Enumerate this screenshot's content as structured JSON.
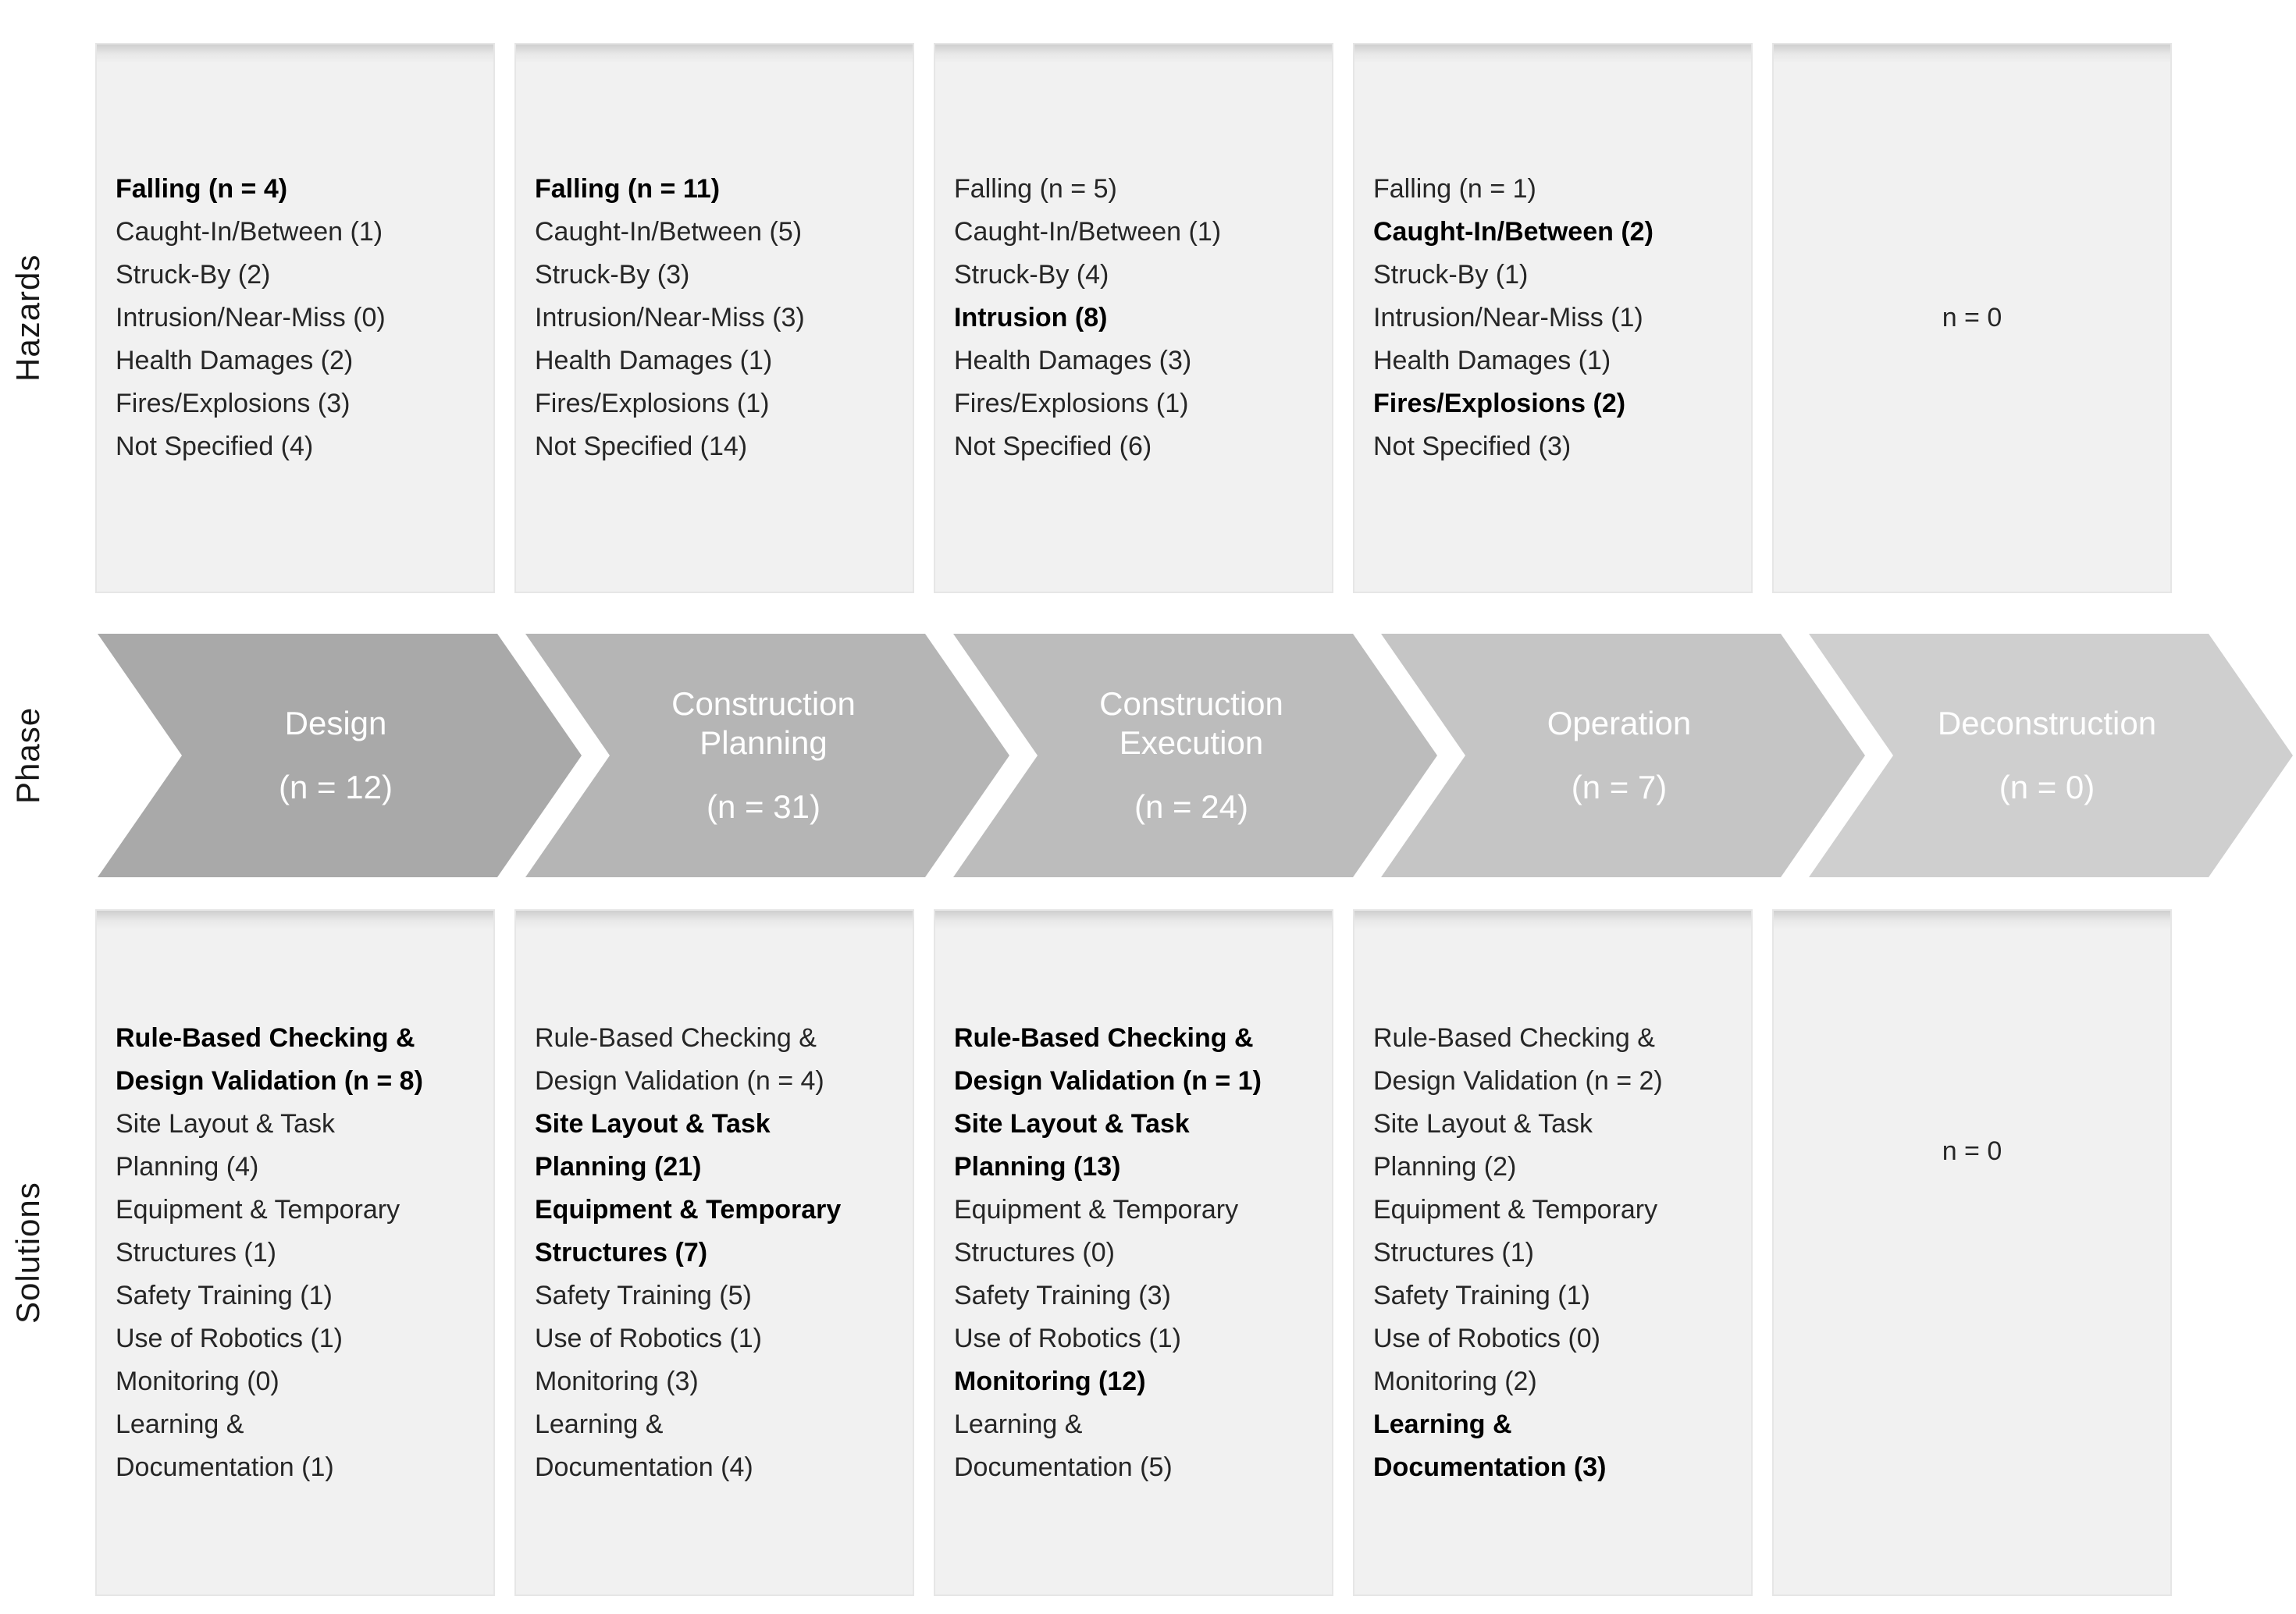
{
  "row_labels": {
    "hazards": "Hazards",
    "phase": "Phase",
    "solutions": "Solutions"
  },
  "colors": {
    "box_background": "#f1f1f1",
    "box_border": "#e6e6e6",
    "text": "#262626",
    "bold_text": "#000000",
    "arrow_text": "#ffffff"
  },
  "columns": [
    {
      "id": "design",
      "phase": {
        "name": "Design",
        "count": "(n = 12)",
        "fill": "#a9a9a9"
      },
      "hazards": {
        "items": [
          {
            "text": "Falling (n = 4)",
            "bold": true
          },
          {
            "text": "Caught-In/Between (1)"
          },
          {
            "text": "Struck-By (2)"
          },
          {
            "text": "Intrusion/Near-Miss (0)"
          },
          {
            "text": "Health Damages (2)"
          },
          {
            "text": "Fires/Explosions (3)"
          },
          {
            "text": "Not Specified (4)"
          }
        ]
      },
      "solutions": {
        "items": [
          {
            "text": "Rule-Based Checking &\nDesign Validation (n = 8)",
            "bold": true
          },
          {
            "text": "Site Layout & Task\nPlanning (4)"
          },
          {
            "text": "Equipment & Temporary\nStructures (1)"
          },
          {
            "text": "Safety Training (1)"
          },
          {
            "text": "Use of Robotics (1)"
          },
          {
            "text": "Monitoring (0)"
          },
          {
            "text": "Learning &\nDocumentation (1)"
          }
        ]
      }
    },
    {
      "id": "construction-planning",
      "phase": {
        "name": "Construction Planning",
        "count": "(n = 31)",
        "fill": "#b5b5b5"
      },
      "hazards": {
        "items": [
          {
            "text": "Falling (n = 11)",
            "bold": true
          },
          {
            "text": "Caught-In/Between (5)"
          },
          {
            "text": "Struck-By (3)"
          },
          {
            "text": "Intrusion/Near-Miss (3)"
          },
          {
            "text": "Health Damages (1)"
          },
          {
            "text": "Fires/Explosions (1)"
          },
          {
            "text": "Not Specified (14)"
          }
        ]
      },
      "solutions": {
        "items": [
          {
            "text": "Rule-Based Checking &\nDesign Validation (n = 4)"
          },
          {
            "text": "Site Layout & Task\nPlanning (21)",
            "bold": true
          },
          {
            "text": "Equipment & Temporary\nStructures (7)",
            "bold": true
          },
          {
            "text": "Safety Training (5)"
          },
          {
            "text": "Use of Robotics (1)"
          },
          {
            "text": "Monitoring (3)"
          },
          {
            "text": "Learning &\nDocumentation (4)"
          }
        ]
      }
    },
    {
      "id": "construction-execution",
      "phase": {
        "name": "Construction Execution",
        "count": "(n = 24)",
        "fill": "#bcbcbc"
      },
      "hazards": {
        "items": [
          {
            "text": "Falling (n = 5)"
          },
          {
            "text": "Caught-In/Between (1)"
          },
          {
            "text": "Struck-By (4)"
          },
          {
            "text": "Intrusion (8)",
            "bold": true
          },
          {
            "text": "Health Damages (3)"
          },
          {
            "text": "Fires/Explosions (1)"
          },
          {
            "text": "Not Specified (6)"
          }
        ]
      },
      "solutions": {
        "items": [
          {
            "text": "Rule-Based Checking &\nDesign Validation (n = 1)",
            "bold": true
          },
          {
            "text": "Site Layout & Task\nPlanning (13)",
            "bold": true
          },
          {
            "text": "Equipment & Temporary\nStructures (0)"
          },
          {
            "text": "Safety Training (3)"
          },
          {
            "text": "Use of Robotics (1)"
          },
          {
            "text": "Monitoring (12)",
            "bold": true
          },
          {
            "text": "Learning &\nDocumentation (5)"
          }
        ]
      }
    },
    {
      "id": "operation",
      "phase": {
        "name": "Operation",
        "count": "(n = 7)",
        "fill": "#c5c5c5"
      },
      "hazards": {
        "items": [
          {
            "text": "Falling (n = 1)"
          },
          {
            "text": "Caught-In/Between (2)",
            "bold": true
          },
          {
            "text": "Struck-By (1)"
          },
          {
            "text": "Intrusion/Near-Miss (1)"
          },
          {
            "text": "Health Damages (1)"
          },
          {
            "text": "Fires/Explosions (2)",
            "bold": true
          },
          {
            "text": "Not Specified (3)"
          }
        ]
      },
      "solutions": {
        "items": [
          {
            "text": "Rule-Based Checking &\nDesign Validation (n = 2)"
          },
          {
            "text": "Site Layout & Task\nPlanning (2)"
          },
          {
            "text": "Equipment & Temporary\nStructures (1)"
          },
          {
            "text": "Safety Training (1)"
          },
          {
            "text": "Use of Robotics (0)"
          },
          {
            "text": "Monitoring (2)"
          },
          {
            "text": "Learning &\nDocumentation (3)",
            "bold": true
          }
        ]
      }
    },
    {
      "id": "deconstruction",
      "phase": {
        "name": "Deconstruction",
        "count": "(n = 0)",
        "fill": "#cfcfcf"
      },
      "hazards": {
        "empty_text": "n = 0"
      },
      "solutions": {
        "empty_text": "n = 0"
      }
    }
  ]
}
